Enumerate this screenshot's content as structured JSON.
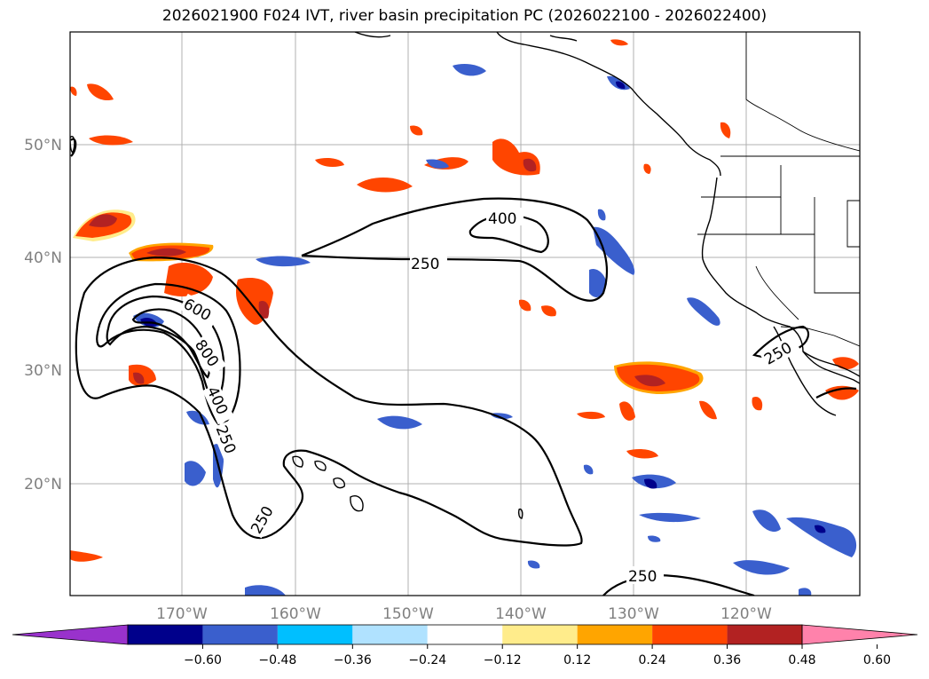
{
  "title": "2026021900 F024 IVT, river basin precipitation PC (2026022100 - 2026022400)",
  "lat_labels": [
    "50°N",
    "40°N",
    "30°N",
    "20°N"
  ],
  "lon_labels": [
    "170°W",
    "160°W",
    "150°W",
    "140°W",
    "130°W",
    "120°W"
  ],
  "contour_labels": [
    "400",
    "250",
    "600",
    "800",
    "400",
    "250",
    "250",
    "250",
    "250"
  ],
  "colorbar": {
    "colors": [
      "#9932cc",
      "#00008b",
      "#3a5fcd",
      "#00bfff",
      "#b0e2ff",
      "#ffffff",
      "#ffec8b",
      "#ffa500",
      "#ff4500",
      "#b22222",
      "#ff82ab"
    ],
    "tick_labels": [
      "−0.60",
      "−0.48",
      "−0.36",
      "−0.24",
      "−0.12",
      "0.12",
      "0.24",
      "0.36",
      "0.48",
      "0.60"
    ]
  },
  "colors": {
    "contour": "#000000",
    "grid": "#b0b0b0",
    "axis_label": "#808080"
  }
}
